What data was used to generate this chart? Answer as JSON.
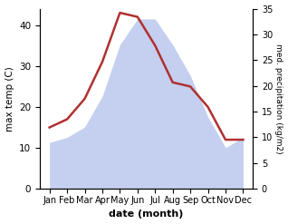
{
  "months": [
    "Jan",
    "Feb",
    "Mar",
    "Apr",
    "May",
    "Jun",
    "Jul",
    "Aug",
    "Sep",
    "Oct",
    "Nov",
    "Dec"
  ],
  "temperature": [
    15,
    17,
    22,
    31,
    43,
    42,
    35,
    26,
    25,
    20,
    12,
    12
  ],
  "precipitation": [
    9,
    10,
    12,
    18,
    28,
    33,
    33,
    28,
    22,
    14,
    8,
    10
  ],
  "temp_color": "#b03030",
  "precip_fill_color": "#c5d0f0",
  "left_ylabel": "max temp (C)",
  "right_ylabel": "med. precipitation (kg/m2)",
  "xlabel": "date (month)",
  "left_ylim": [
    0,
    44
  ],
  "right_ylim": [
    0,
    35
  ],
  "left_yticks": [
    0,
    10,
    20,
    30,
    40
  ],
  "right_yticks": [
    0,
    5,
    10,
    15,
    20,
    25,
    30,
    35
  ],
  "background_color": "#ffffff"
}
